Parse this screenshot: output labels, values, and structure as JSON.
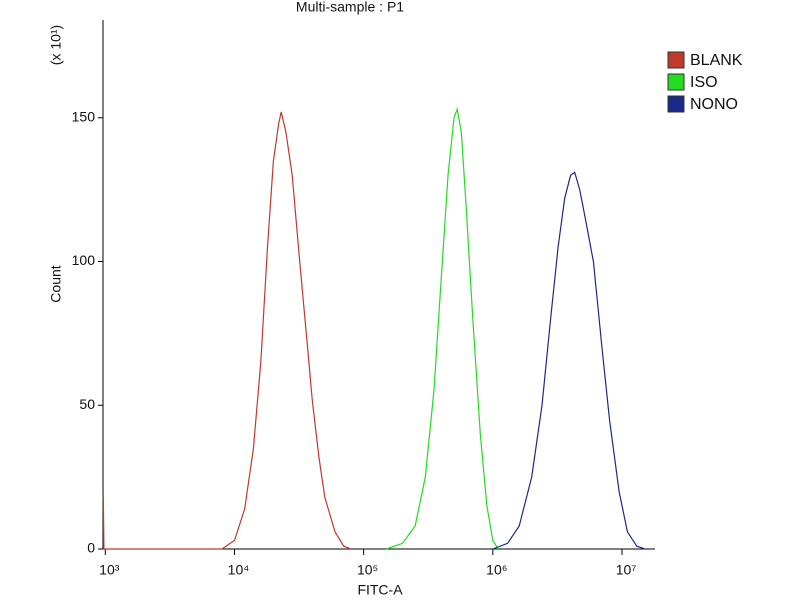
{
  "chart_data": {
    "type": "line",
    "title": "Multi-sample : P1",
    "x_label": "FITC-A",
    "y_label": "Count",
    "y_multiplier": "(x 10¹)",
    "xscale": "log",
    "xlim": [
      960,
      18000000
    ],
    "ylim": [
      0,
      184
    ],
    "xticks": [
      {
        "value": 1000,
        "label": "10³"
      },
      {
        "value": 10000,
        "label": "10⁴"
      },
      {
        "value": 100000,
        "label": "10⁵"
      },
      {
        "value": 1000000,
        "label": "10⁶"
      },
      {
        "value": 10000000,
        "label": "10⁷"
      }
    ],
    "yticks": [
      0,
      50,
      100,
      150
    ],
    "legend": "top-right",
    "series": [
      {
        "name": "BLANK",
        "color": "#c0392b",
        "x": [
          965,
          975,
          8000,
          10000,
          12000,
          14000,
          16000,
          18000,
          20000,
          22000,
          23000,
          25000,
          28000,
          32000,
          36000,
          40000,
          45000,
          50000,
          60000,
          70000,
          80000
        ],
        "values": [
          19,
          0,
          0,
          3,
          14,
          35,
          65,
          105,
          135,
          148,
          152,
          145,
          130,
          100,
          75,
          52,
          32,
          18,
          6,
          1,
          0
        ]
      },
      {
        "name": "ISO",
        "color": "#22dd22",
        "x": [
          150000,
          200000,
          250000,
          300000,
          350000,
          400000,
          450000,
          500000,
          530000,
          570000,
          620000,
          700000,
          800000,
          900000,
          1000000,
          1100000
        ],
        "values": [
          0,
          2,
          8,
          25,
          55,
          95,
          130,
          150,
          153,
          145,
          120,
          80,
          40,
          15,
          3,
          0
        ]
      },
      {
        "name": "NONO",
        "color": "#1a2a8a",
        "x": [
          1000000,
          1300000,
          1600000,
          2000000,
          2400000,
          2800000,
          3200000,
          3600000,
          4000000,
          4300000,
          4700000,
          5200000,
          6000000,
          7000000,
          8000000,
          9500000,
          11000000,
          13000000,
          15000000
        ],
        "values": [
          0,
          2,
          8,
          25,
          50,
          80,
          105,
          122,
          130,
          131,
          125,
          115,
          100,
          70,
          45,
          20,
          6,
          1,
          0
        ]
      }
    ]
  }
}
